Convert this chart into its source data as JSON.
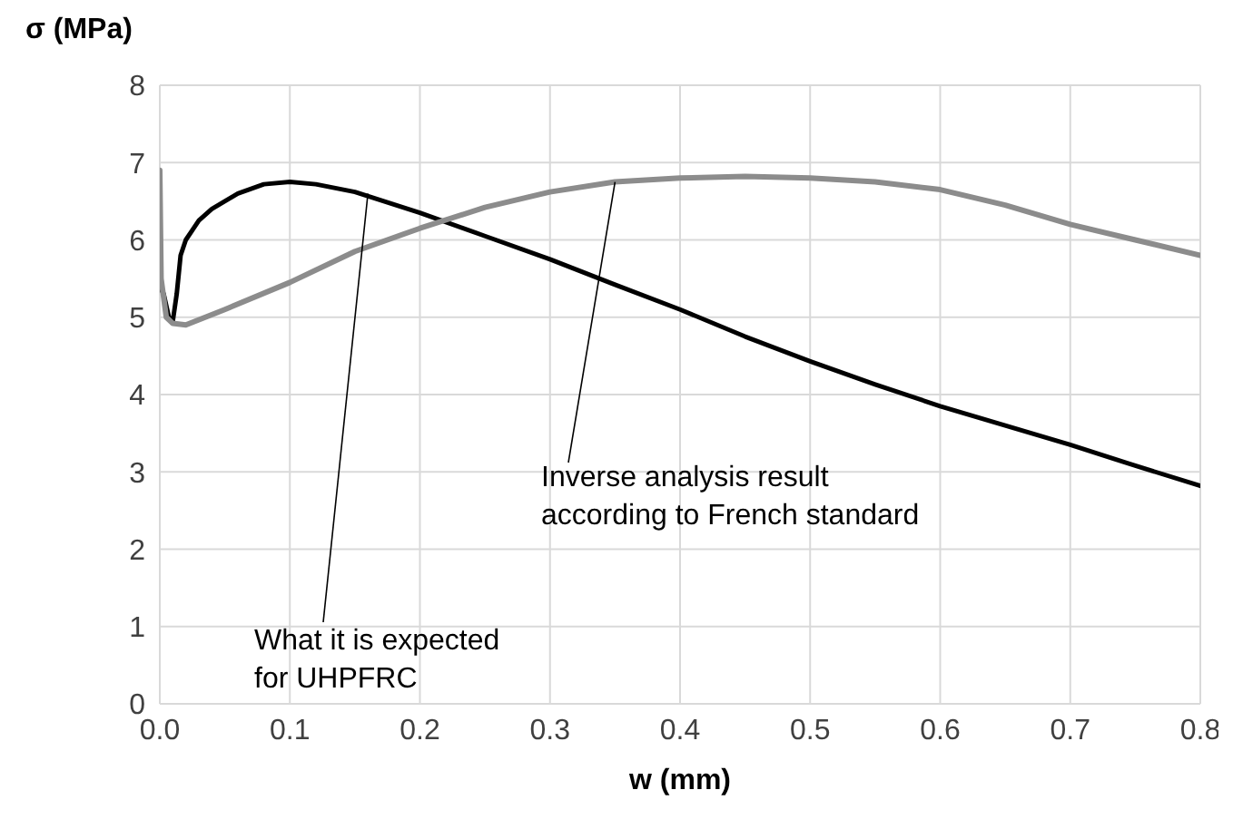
{
  "chart_data": {
    "type": "line",
    "xlabel": "w (mm)",
    "ylabel": "σ (MPa)",
    "xlim": [
      0,
      0.8
    ],
    "xticks": [
      {
        "value": 0,
        "label": "0.0"
      },
      0.1,
      0.2,
      0.3,
      0.4,
      0.5,
      0.6,
      0.7,
      0.8
    ],
    "ylim": [
      0,
      8
    ],
    "yticks": [
      0,
      1,
      2,
      3,
      4,
      5,
      6,
      7,
      8
    ],
    "grid": true,
    "marker": "none",
    "line_style": "solid",
    "series": [
      {
        "color": "#000000",
        "x": [
          0,
          0.003,
          0.007,
          0.01,
          0.013,
          0.016,
          0.02,
          0.03,
          0.04,
          0.06,
          0.08,
          0.1,
          0.12,
          0.15,
          0.2,
          0.25,
          0.3,
          0.35,
          0.4,
          0.45,
          0.5,
          0.55,
          0.6,
          0.65,
          0.7,
          0.75,
          0.8
        ],
        "values": [
          5.4,
          5.3,
          5.0,
          4.95,
          5.3,
          5.8,
          6.0,
          6.25,
          6.4,
          6.6,
          6.72,
          6.75,
          6.72,
          6.62,
          6.35,
          6.05,
          5.75,
          5.42,
          5.1,
          4.75,
          4.43,
          4.13,
          3.85,
          3.6,
          3.35,
          3.08,
          2.82
        ]
      },
      {
        "color": "#8c8c8c",
        "x": [
          0,
          0.001,
          0.005,
          0.01,
          0.02,
          0.05,
          0.1,
          0.15,
          0.2,
          0.25,
          0.3,
          0.35,
          0.4,
          0.45,
          0.5,
          0.55,
          0.6,
          0.65,
          0.7,
          0.75,
          0.8
        ],
        "values": [
          6.9,
          5.5,
          5.0,
          4.92,
          4.9,
          5.1,
          5.45,
          5.85,
          6.15,
          6.42,
          6.62,
          6.75,
          6.8,
          6.82,
          6.8,
          6.75,
          6.65,
          6.45,
          6.2,
          6.0,
          5.8
        ]
      }
    ],
    "annotations": [
      {
        "text": "What it is expected\nfor UHPFRC",
        "x": 0.16,
        "y": 6.6
      },
      {
        "text": "Inverse analysis result\naccording to French standard",
        "x": 0.35,
        "y": 6.75
      }
    ]
  }
}
